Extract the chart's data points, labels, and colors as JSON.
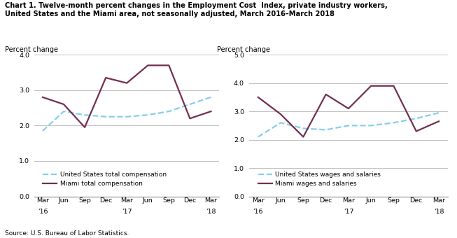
{
  "title_line1": "Chart 1. Twelve-month percent changes in the Employment Cost  Index, private industry workers,",
  "title_line2": "United States and the Miami area, not seasonally adjusted, March 2016–March 2018",
  "source": "Source: U.S. Bureau of Labor Statistics.",
  "x_labels_top": [
    "Mar",
    "Jun",
    "Sep",
    "Dec",
    "Mar",
    "Jun",
    "Sep",
    "Dec",
    "Mar"
  ],
  "x_labels_year": [
    "'16",
    "",
    "",
    "",
    "'17",
    "",
    "",
    "",
    "'18"
  ],
  "left": {
    "ylabel": "Percent change",
    "ylim": [
      0.0,
      4.0
    ],
    "yticks": [
      0.0,
      1.0,
      2.0,
      3.0,
      4.0
    ],
    "us_values": [
      1.85,
      2.4,
      2.3,
      2.25,
      2.25,
      2.3,
      2.4,
      2.6,
      2.8
    ],
    "miami_values": [
      2.8,
      2.6,
      1.95,
      3.35,
      3.2,
      3.7,
      3.7,
      2.2,
      2.4
    ],
    "us_label": "United States total compensation",
    "miami_label": "Miami total compensation"
  },
  "right": {
    "ylabel": "Percent change",
    "ylim": [
      0.0,
      5.0
    ],
    "yticks": [
      0.0,
      1.0,
      2.0,
      3.0,
      4.0,
      5.0
    ],
    "us_values": [
      2.1,
      2.6,
      2.4,
      2.35,
      2.5,
      2.5,
      2.6,
      2.75,
      2.95
    ],
    "miami_values": [
      3.5,
      2.9,
      2.1,
      3.6,
      3.1,
      3.9,
      3.9,
      2.3,
      2.65
    ],
    "us_label": "United States wages and salaries",
    "miami_label": "Miami wages and salaries"
  },
  "us_color": "#87CEEB",
  "miami_color": "#722F4F",
  "linewidth": 1.6
}
